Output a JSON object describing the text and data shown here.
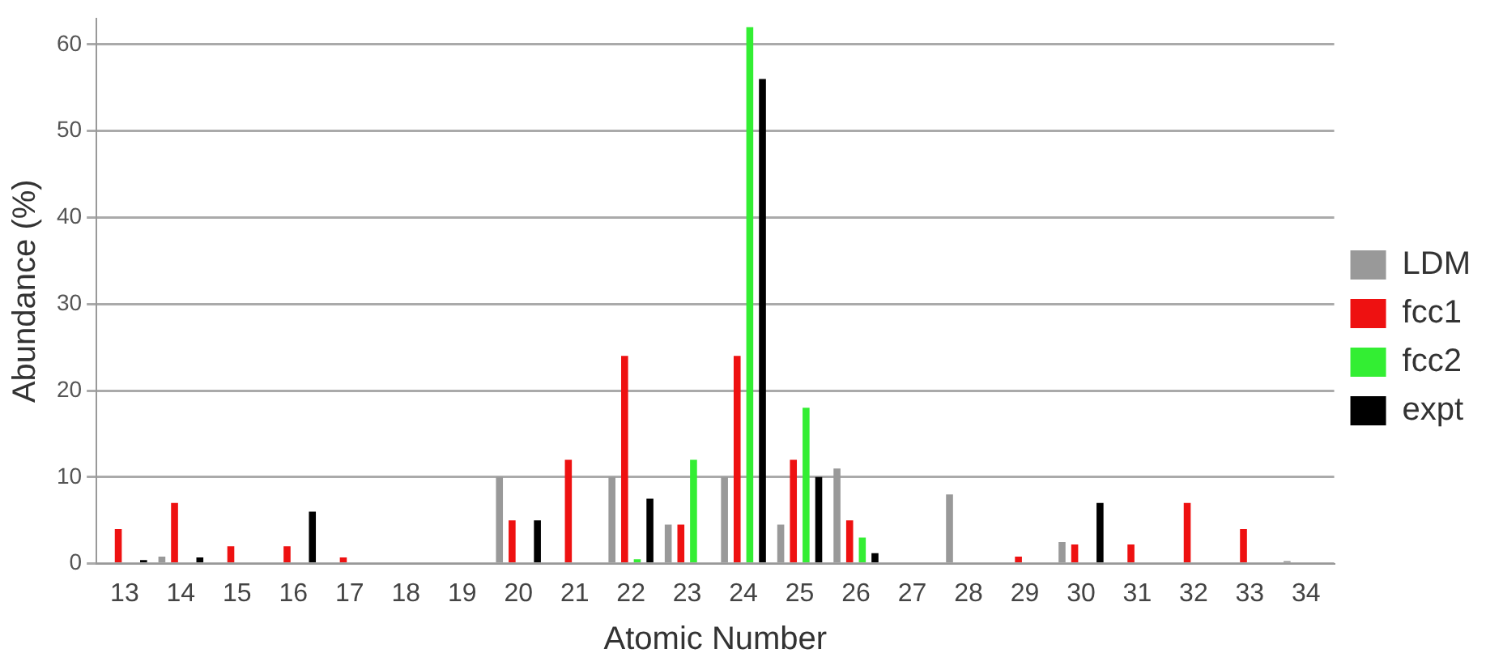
{
  "chart_data": {
    "type": "bar",
    "xlabel": "Atomic Number",
    "ylabel": "Abundance (%)",
    "categories": [
      "13",
      "14",
      "15",
      "16",
      "17",
      "18",
      "19",
      "20",
      "21",
      "22",
      "23",
      "24",
      "25",
      "26",
      "27",
      "28",
      "29",
      "30",
      "31",
      "32",
      "33",
      "34"
    ],
    "series": [
      {
        "name": "LDM",
        "color": "#999999",
        "values": [
          0,
          0.8,
          0,
          0,
          0,
          0,
          0,
          10,
          0,
          10,
          4.5,
          10,
          4.5,
          11,
          0,
          8,
          0,
          2.5,
          0,
          0,
          0,
          0.3
        ]
      },
      {
        "name": "fcc1",
        "color": "#ee1111",
        "values": [
          4,
          7,
          2,
          2,
          0.7,
          0,
          0,
          5,
          12,
          24,
          4.5,
          24,
          12,
          5,
          0,
          0,
          0.8,
          2.2,
          2.2,
          7,
          4,
          0
        ]
      },
      {
        "name": "fcc2",
        "color": "#33ee33",
        "values": [
          0,
          0,
          0,
          0,
          0,
          0,
          0,
          0,
          0,
          0.5,
          12,
          62,
          18,
          3,
          0,
          0,
          0,
          0,
          0,
          0,
          0,
          0
        ]
      },
      {
        "name": "expt",
        "color": "#000000",
        "values": [
          0.4,
          0.7,
          0,
          6,
          0,
          0,
          0,
          5,
          0,
          7.5,
          0,
          56,
          10,
          1.2,
          0,
          0,
          0,
          7,
          0,
          0,
          0,
          0
        ]
      }
    ],
    "ylim": [
      0,
      63
    ],
    "yticks": [
      0,
      10,
      20,
      30,
      40,
      50,
      60
    ],
    "grid": "y",
    "legend": "right"
  }
}
